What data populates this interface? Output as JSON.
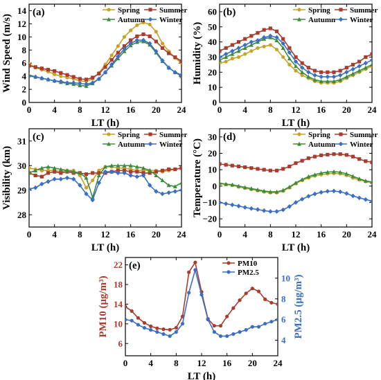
{
  "chart_data": [
    {
      "type": "line",
      "panel": "(a)",
      "xlabel": "LT (h)",
      "ylabel": "Wind Speed (m/s)",
      "x": [
        0,
        1,
        2,
        3,
        4,
        5,
        6,
        7,
        8,
        9,
        10,
        11,
        12,
        13,
        14,
        15,
        16,
        17,
        18,
        19,
        20,
        21,
        22,
        23,
        24
      ],
      "xticks": [
        0,
        4,
        8,
        12,
        16,
        20,
        24
      ],
      "ylim": [
        0,
        15
      ],
      "yticks": [
        0,
        2,
        4,
        6,
        8,
        10,
        12,
        14
      ],
      "legend": "top-right",
      "series": [
        {
          "name": "Spring",
          "color": "#c9a227",
          "values": [
            5.9,
            5.3,
            5.0,
            4.7,
            4.3,
            4.0,
            3.8,
            3.6,
            3.3,
            3.2,
            3.6,
            4.5,
            5.8,
            7.2,
            8.6,
            10.0,
            11.0,
            11.8,
            12.2,
            11.9,
            10.8,
            9.0,
            7.8,
            6.8,
            6.0
          ]
        },
        {
          "name": "Summer",
          "color": "#a83c2e",
          "values": [
            5.6,
            5.4,
            5.2,
            5.0,
            4.8,
            4.5,
            4.2,
            3.9,
            3.6,
            3.5,
            3.8,
            4.4,
            5.4,
            6.5,
            7.6,
            8.6,
            9.5,
            10.1,
            10.4,
            10.1,
            9.3,
            8.3,
            7.5,
            6.9,
            6.3
          ]
        },
        {
          "name": "Autumn",
          "color": "#3d8c3d",
          "values": [
            4.2,
            3.9,
            3.7,
            3.5,
            3.3,
            3.1,
            2.9,
            2.8,
            2.6,
            2.5,
            2.9,
            3.6,
            4.6,
            5.6,
            6.7,
            7.8,
            8.7,
            9.2,
            9.3,
            8.8,
            7.6,
            6.3,
            5.3,
            4.6,
            4.0
          ]
        },
        {
          "name": "Winter",
          "color": "#3b6fc4",
          "values": [
            4.0,
            3.9,
            3.7,
            3.5,
            3.3,
            3.2,
            3.0,
            3.0,
            2.9,
            2.8,
            3.0,
            3.6,
            4.6,
            5.8,
            7.0,
            8.2,
            9.0,
            9.5,
            9.5,
            9.0,
            7.8,
            6.4,
            5.3,
            4.6,
            4.2
          ]
        }
      ]
    },
    {
      "type": "line",
      "panel": "(b)",
      "xlabel": "LT (h)",
      "ylabel": "Humidity (%)",
      "x": [
        0,
        1,
        2,
        3,
        4,
        5,
        6,
        7,
        8,
        9,
        10,
        11,
        12,
        13,
        14,
        15,
        16,
        17,
        18,
        19,
        20,
        21,
        22,
        23,
        24
      ],
      "xticks": [
        0,
        4,
        8,
        12,
        16,
        20,
        24
      ],
      "ylim": [
        0,
        65
      ],
      "yticks": [
        0,
        10,
        20,
        30,
        40,
        50,
        60
      ],
      "legend": "top-right",
      "series": [
        {
          "name": "Spring",
          "color": "#c9a227",
          "values": [
            26,
            27,
            29,
            30,
            32,
            34,
            36,
            37,
            38,
            35,
            30,
            25,
            21,
            18,
            16,
            14,
            13,
            13,
            13,
            14,
            16,
            18,
            20,
            22,
            24
          ]
        },
        {
          "name": "Summer",
          "color": "#a83c2e",
          "values": [
            34,
            36,
            38,
            40,
            42,
            44,
            46,
            48,
            49,
            47,
            42,
            36,
            30,
            26,
            23,
            21,
            20,
            20,
            20,
            21,
            23,
            25,
            27,
            30,
            32
          ]
        },
        {
          "name": "Autumn",
          "color": "#3d8c3d",
          "values": [
            28,
            30,
            32,
            34,
            36,
            38,
            40,
            42,
            43,
            41,
            36,
            29,
            24,
            20,
            17,
            15,
            14,
            14,
            14,
            15,
            17,
            19,
            21,
            23,
            25
          ]
        },
        {
          "name": "Winter",
          "color": "#3b6fc4",
          "values": [
            30,
            32,
            34,
            36,
            38,
            40,
            41,
            43,
            44,
            43,
            39,
            33,
            27,
            23,
            20,
            18,
            17,
            17,
            17,
            18,
            20,
            22,
            24,
            26,
            28
          ]
        }
      ]
    },
    {
      "type": "line",
      "panel": "(c)",
      "xlabel": "LT (h)",
      "ylabel": "Visibility (km)",
      "x": [
        0,
        1,
        2,
        3,
        4,
        5,
        6,
        7,
        8,
        9,
        10,
        11,
        12,
        13,
        14,
        15,
        16,
        17,
        18,
        19,
        20,
        21,
        22,
        23,
        24
      ],
      "xticks": [
        0,
        4,
        8,
        12,
        16,
        20,
        24
      ],
      "ylim": [
        27.5,
        31.5
      ],
      "yticks": [
        28,
        29,
        30,
        31
      ],
      "legend": "top-right",
      "series": [
        {
          "name": "Spring",
          "color": "#c9a227",
          "values": [
            29.9,
            29.85,
            29.8,
            29.8,
            29.8,
            29.75,
            29.8,
            29.8,
            29.6,
            29.1,
            29.4,
            29.8,
            29.95,
            29.95,
            29.9,
            29.9,
            29.85,
            29.8,
            29.8,
            29.8,
            29.8,
            29.75,
            29.8,
            29.85,
            29.9
          ]
        },
        {
          "name": "Summer",
          "color": "#a83c2e",
          "values": [
            29.7,
            29.6,
            29.55,
            29.7,
            29.75,
            29.7,
            29.75,
            29.7,
            29.7,
            29.65,
            29.7,
            29.7,
            29.7,
            29.75,
            29.8,
            29.8,
            29.75,
            29.75,
            29.7,
            29.7,
            29.75,
            29.8,
            29.85,
            29.85,
            29.9
          ]
        },
        {
          "name": "Autumn",
          "color": "#3d8c3d",
          "values": [
            29.7,
            29.8,
            29.9,
            29.95,
            29.9,
            29.85,
            29.8,
            29.75,
            29.7,
            29.5,
            28.7,
            29.6,
            29.95,
            30.0,
            30.0,
            30.0,
            30.0,
            29.95,
            29.9,
            29.8,
            29.6,
            29.4,
            29.2,
            29.15,
            29.3
          ]
        },
        {
          "name": "Winter",
          "color": "#3b6fc4",
          "values": [
            29.05,
            29.1,
            29.25,
            29.35,
            29.45,
            29.45,
            29.5,
            29.45,
            29.2,
            28.85,
            28.6,
            29.3,
            29.75,
            29.75,
            29.7,
            29.7,
            29.6,
            29.55,
            29.6,
            29.2,
            28.95,
            28.85,
            28.9,
            28.95,
            29.0
          ]
        }
      ]
    },
    {
      "type": "line",
      "panel": "(d)",
      "xlabel": "LT (h)",
      "ylabel": "Temperature (°C)",
      "x": [
        0,
        1,
        2,
        3,
        4,
        5,
        6,
        7,
        8,
        9,
        10,
        11,
        12,
        13,
        14,
        15,
        16,
        17,
        18,
        19,
        20,
        21,
        22,
        23,
        24
      ],
      "xticks": [
        0,
        4,
        8,
        12,
        16,
        20,
        24
      ],
      "ylim": [
        -25,
        35
      ],
      "yticks": [
        -20,
        -10,
        0,
        10,
        20,
        30
      ],
      "legend": "top-right",
      "series": [
        {
          "name": "Spring",
          "color": "#c9a227",
          "values": [
            1.5,
            1.0,
            0.5,
            -0.5,
            -1.2,
            -2.0,
            -2.8,
            -3.5,
            -4.0,
            -4.0,
            -3.0,
            -1.0,
            1.5,
            3.5,
            5.0,
            6.2,
            7.0,
            7.5,
            7.8,
            7.5,
            6.5,
            5.0,
            3.8,
            2.8,
            2.0
          ]
        },
        {
          "name": "Summer",
          "color": "#a83c2e",
          "values": [
            13.5,
            13.0,
            12.5,
            12.0,
            11.5,
            11.0,
            10.5,
            10.0,
            9.5,
            9.5,
            10.5,
            12.0,
            14.0,
            15.5,
            17.0,
            18.0,
            18.8,
            19.2,
            19.5,
            19.5,
            19.0,
            18.0,
            16.5,
            15.2,
            14.5
          ]
        },
        {
          "name": "Autumn",
          "color": "#3d8c3d",
          "values": [
            1.8,
            1.2,
            0.8,
            0.0,
            -0.8,
            -1.5,
            -2.2,
            -3.0,
            -3.5,
            -3.5,
            -2.5,
            -0.5,
            2.0,
            4.0,
            5.8,
            7.0,
            8.0,
            8.5,
            8.8,
            8.5,
            7.5,
            6.0,
            4.5,
            3.2,
            2.5
          ]
        },
        {
          "name": "Winter",
          "color": "#3b6fc4",
          "values": [
            -10.0,
            -10.8,
            -11.5,
            -12.2,
            -13.0,
            -13.7,
            -14.3,
            -15.0,
            -15.5,
            -15.5,
            -14.5,
            -12.5,
            -10.0,
            -8.0,
            -6.2,
            -4.8,
            -3.8,
            -3.2,
            -3.0,
            -3.5,
            -4.5,
            -6.0,
            -7.2,
            -8.2,
            -9.2
          ]
        }
      ]
    },
    {
      "type": "line",
      "panel": "(e)",
      "xlabel": "LT (h)",
      "ylabel": "PM10 (μg/m³)",
      "ylabel_right": "PM2.5 (μg/m³)",
      "x": [
        0,
        1,
        2,
        3,
        4,
        5,
        6,
        7,
        8,
        9,
        10,
        11,
        12,
        13,
        14,
        15,
        16,
        17,
        18,
        19,
        20,
        21,
        22,
        23,
        24
      ],
      "xticks": [
        0,
        4,
        8,
        12,
        16,
        20,
        24
      ],
      "ylim": [
        3.5,
        23.5
      ],
      "yticks": [
        6,
        10,
        14,
        18,
        22
      ],
      "ylim_right": [
        2.5,
        12
      ],
      "yticks_right": [
        4,
        6,
        8,
        10
      ],
      "legend": "top-right",
      "series": [
        {
          "name": "PM10",
          "axis": "left",
          "color": "#a83c2e",
          "values": [
            13.5,
            12.6,
            11.2,
            10.2,
            9.5,
            9.1,
            8.9,
            8.8,
            9.2,
            11.5,
            20.5,
            22.5,
            16.5,
            11.0,
            9.6,
            9.6,
            11.5,
            13.2,
            14.8,
            16.2,
            17.2,
            16.6,
            15.0,
            14.3,
            14.0
          ]
        },
        {
          "name": "PM2.5",
          "axis": "right",
          "color": "#3b6fc4",
          "values": [
            6.0,
            5.9,
            5.5,
            5.2,
            5.0,
            4.8,
            4.6,
            4.4,
            4.8,
            5.6,
            8.6,
            10.8,
            8.4,
            6.0,
            4.8,
            4.4,
            4.4,
            4.6,
            4.8,
            5.0,
            5.3,
            5.3,
            5.6,
            5.8,
            6.0
          ]
        }
      ]
    }
  ]
}
